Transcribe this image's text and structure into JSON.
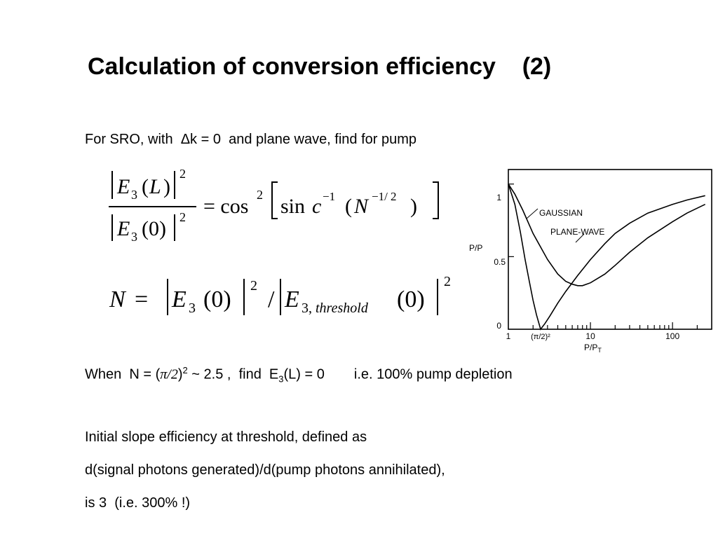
{
  "slide": {
    "title": "Calculation of conversion efficiency    (2)",
    "intro": "For SRO, with  Δk = 0  and plane wave, find for pump",
    "eq1": {
      "num": "|E₃(L)|²",
      "den": "|E₃(0)|²",
      "rhs": "= cos²[sinc⁻¹(N⁻¹ᐟ²)]"
    },
    "eq2": "N = |E₃(0)|² / |E₃,threshold(0)|²",
    "when_line": {
      "a": "When  N = (",
      "pi": "π/2",
      "b": ")",
      "sup": "2",
      "c": " ~ 2.5 ,  find  E",
      "sub": "3",
      "d": "(L) = 0",
      "e": "i.e. 100% pump depletion"
    },
    "slope_1": "Initial slope efficiency at threshold, defined as",
    "slope_2": "d(signal photons generated)/d(pump photons annihilated),",
    "slope_3": "is 3  (i.e. 300% !)"
  },
  "chart_data": {
    "type": "line",
    "ylabel": "P/P",
    "xlabel": "P/P",
    "xlabel_sub": "T",
    "x_scale": "log",
    "xlim": [
      1,
      300
    ],
    "ylim": [
      0,
      1.1
    ],
    "y_ticks": [
      "1",
      "0.5",
      "0"
    ],
    "x_ticks": [
      "1",
      "(π/2)²",
      "10",
      "100"
    ],
    "series": [
      {
        "name": "GAUSSIAN",
        "x": [
          1,
          1.2,
          1.5,
          2,
          3,
          4,
          5,
          6,
          7,
          8,
          10,
          15,
          20,
          30,
          50,
          100,
          150,
          250
        ],
        "y": [
          1.0,
          0.93,
          0.82,
          0.66,
          0.48,
          0.38,
          0.33,
          0.31,
          0.3,
          0.3,
          0.32,
          0.38,
          0.44,
          0.53,
          0.63,
          0.74,
          0.8,
          0.86
        ]
      },
      {
        "name": "PLANE-WAVE",
        "x": [
          1,
          1.2,
          1.4,
          1.6,
          1.8,
          2,
          2.2,
          2.47,
          2.8,
          3.2,
          4,
          5,
          7,
          10,
          15,
          20,
          30,
          50,
          100,
          150,
          250
        ],
        "y": [
          1.0,
          0.86,
          0.67,
          0.48,
          0.33,
          0.2,
          0.1,
          0.0,
          0.04,
          0.09,
          0.18,
          0.26,
          0.37,
          0.48,
          0.59,
          0.66,
          0.73,
          0.8,
          0.86,
          0.89,
          0.92
        ]
      }
    ]
  }
}
